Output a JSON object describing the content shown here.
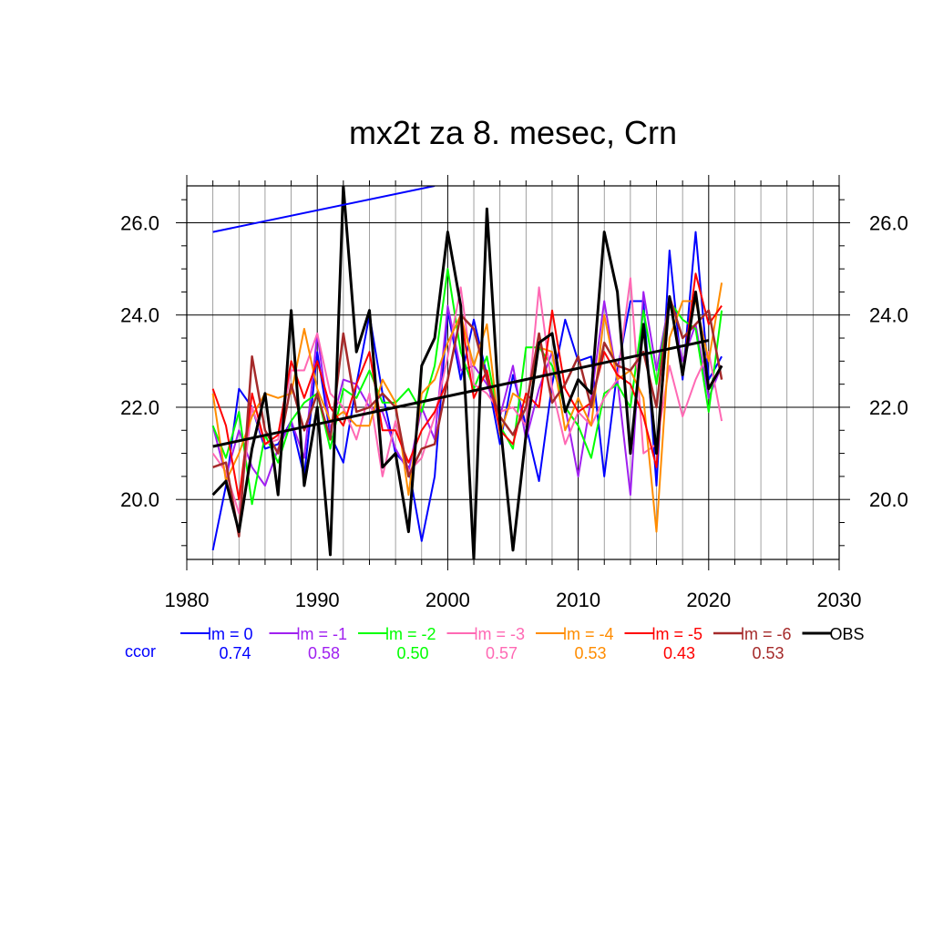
{
  "chart_data": {
    "type": "line",
    "title": "mx2t za 8. mesec, Crn",
    "xlabel": "",
    "ylabel": "",
    "xlim": [
      1980,
      2030
    ],
    "ylim": [
      18.7,
      26.8
    ],
    "x_ticks": [
      "1980",
      "1990",
      "2000",
      "2010",
      "2020",
      "2030"
    ],
    "y_ticks": [
      "20.0",
      "22.0",
      "24.0",
      "26.0"
    ],
    "grid": true,
    "legend_position": "bottom",
    "ccor_label": "ccor",
    "x": [
      1982,
      1983,
      1984,
      1985,
      1986,
      1987,
      1988,
      1989,
      1990,
      1991,
      1992,
      1993,
      1994,
      1995,
      1996,
      1997,
      1998,
      1999,
      2000,
      2001,
      2002,
      2003,
      2004,
      2005,
      2006,
      2007,
      2008,
      2009,
      2010,
      2011,
      2012,
      2013,
      2014,
      2015,
      2016,
      2017,
      2018,
      2019,
      2020,
      2021
    ],
    "series": [
      {
        "name": "lm = 0",
        "color": "#0000ff",
        "ccor": "0.74",
        "width": 2,
        "values": [
          18.9,
          20.3,
          22.4,
          22.0,
          21.1,
          21.2,
          21.7,
          20.5,
          23.2,
          21.4,
          20.8,
          22.5,
          24.0,
          22.3,
          21.0,
          20.7,
          19.1,
          20.5,
          24.1,
          22.6,
          23.9,
          22.7,
          21.2,
          22.7,
          21.6,
          20.4,
          22.5,
          23.9,
          23.0,
          23.1,
          20.5,
          22.8,
          24.3,
          24.3,
          20.3,
          25.4,
          22.6,
          25.8,
          22.6,
          23.1
        ]
      },
      {
        "name": "lm = -1",
        "color": "#a020f0",
        "ccor": "0.58",
        "width": 2,
        "values": [
          21.6,
          20.5,
          21.5,
          20.7,
          20.3,
          21.1,
          21.7,
          20.9,
          23.6,
          21.5,
          22.6,
          22.5,
          22.0,
          21.9,
          21.1,
          20.6,
          22.0,
          21.3,
          24.2,
          22.8,
          22.9,
          22.5,
          21.8,
          22.9,
          21.3,
          22.4,
          23.2,
          22.0,
          20.5,
          22.2,
          24.3,
          22.6,
          20.1,
          24.5,
          22.8,
          24.3,
          23.0,
          23.8,
          22.2,
          22.9
        ]
      },
      {
        "name": "lm = -2",
        "color": "#00ff00",
        "ccor": "0.50",
        "width": 2,
        "values": [
          21.6,
          20.9,
          21.9,
          19.9,
          21.4,
          20.8,
          21.7,
          22.1,
          22.3,
          21.1,
          22.4,
          22.2,
          22.8,
          22.1,
          22.1,
          22.4,
          21.9,
          22.9,
          25.0,
          23.2,
          22.4,
          23.1,
          21.6,
          21.1,
          23.3,
          23.3,
          22.9,
          22.0,
          21.6,
          20.9,
          22.3,
          22.5,
          22.0,
          24.1,
          22.5,
          24.3,
          23.9,
          23.7,
          21.9,
          24.1
        ]
      },
      {
        "name": "lm = -3",
        "color": "#ff69b4",
        "ccor": "0.57",
        "width": 2,
        "values": [
          21.0,
          20.6,
          19.7,
          22.0,
          21.2,
          21.3,
          22.8,
          22.8,
          23.6,
          22.3,
          22.0,
          21.3,
          22.3,
          20.5,
          21.7,
          20.6,
          20.9,
          21.8,
          23.1,
          24.6,
          22.5,
          22.3,
          21.9,
          22.0,
          21.6,
          24.6,
          22.4,
          21.2,
          21.9,
          21.6,
          22.2,
          22.6,
          24.8,
          21.0,
          21.2,
          22.9,
          21.8,
          22.6,
          23.2,
          21.7
        ]
      },
      {
        "name": "lm = -4",
        "color": "#ff8c00",
        "ccor": "0.53",
        "width": 2,
        "values": [
          22.3,
          20.4,
          21.0,
          21.8,
          22.3,
          22.2,
          22.3,
          23.7,
          22.4,
          21.7,
          21.9,
          21.6,
          21.6,
          22.6,
          22.1,
          20.1,
          22.3,
          22.6,
          23.4,
          24.0,
          22.9,
          23.8,
          21.4,
          22.3,
          22.1,
          23.3,
          23.2,
          21.5,
          22.2,
          21.6,
          24.0,
          22.6,
          22.8,
          22.2,
          19.3,
          23.5,
          24.3,
          24.3,
          23.0,
          24.7
        ]
      },
      {
        "name": "lm = -5",
        "color": "#ff0000",
        "ccor": "0.43",
        "width": 2,
        "values": [
          22.4,
          21.6,
          20.0,
          22.3,
          21.2,
          21.4,
          23.0,
          22.2,
          23.0,
          22.0,
          21.6,
          22.5,
          23.2,
          21.5,
          21.5,
          20.8,
          21.5,
          21.9,
          22.6,
          24.0,
          22.2,
          22.8,
          21.5,
          21.2,
          22.3,
          22.0,
          24.1,
          22.4,
          21.9,
          22.1,
          23.2,
          22.7,
          22.5,
          21.8,
          20.7,
          24.4,
          22.7,
          24.9,
          23.8,
          24.2
        ]
      },
      {
        "name": "lm = -6",
        "color": "#a52a2a",
        "ccor": "0.53",
        "width": 2.5,
        "values": [
          20.7,
          20.8,
          19.2,
          23.1,
          21.5,
          21.0,
          22.5,
          21.5,
          22.3,
          21.3,
          23.6,
          21.9,
          22.0,
          22.3,
          22.0,
          20.5,
          21.1,
          21.2,
          22.6,
          24.0,
          23.7,
          22.6,
          21.8,
          21.4,
          22.0,
          23.6,
          22.1,
          22.5,
          23.1,
          22.0,
          23.4,
          22.9,
          22.8,
          23.2,
          22.0,
          24.4,
          23.5,
          23.8,
          24.1,
          22.6
        ]
      },
      {
        "name": "OBS",
        "color": "#000000",
        "ccor": "",
        "width": 3,
        "values": [
          20.1,
          20.4,
          19.3,
          21.1,
          22.3,
          20.1,
          24.1,
          20.3,
          22.0,
          18.8,
          26.8,
          23.2,
          24.1,
          20.7,
          21.0,
          19.3,
          22.9,
          23.5,
          25.8,
          24.2,
          18.7,
          26.3,
          21.7,
          18.9,
          21.4,
          23.4,
          23.6,
          21.9,
          22.6,
          22.3,
          25.8,
          24.5,
          21.0,
          23.8,
          21.0,
          24.4,
          22.7,
          24.5,
          22.4,
          22.9
        ]
      }
    ],
    "trend_lines": [
      {
        "color": "#0000ff",
        "width": 2,
        "x": [
          1982,
          1999
        ],
        "y": [
          25.8,
          26.8
        ]
      },
      {
        "color": "#000000",
        "width": 3,
        "x": [
          1982,
          2020
        ],
        "y": [
          21.15,
          23.45
        ]
      }
    ]
  }
}
